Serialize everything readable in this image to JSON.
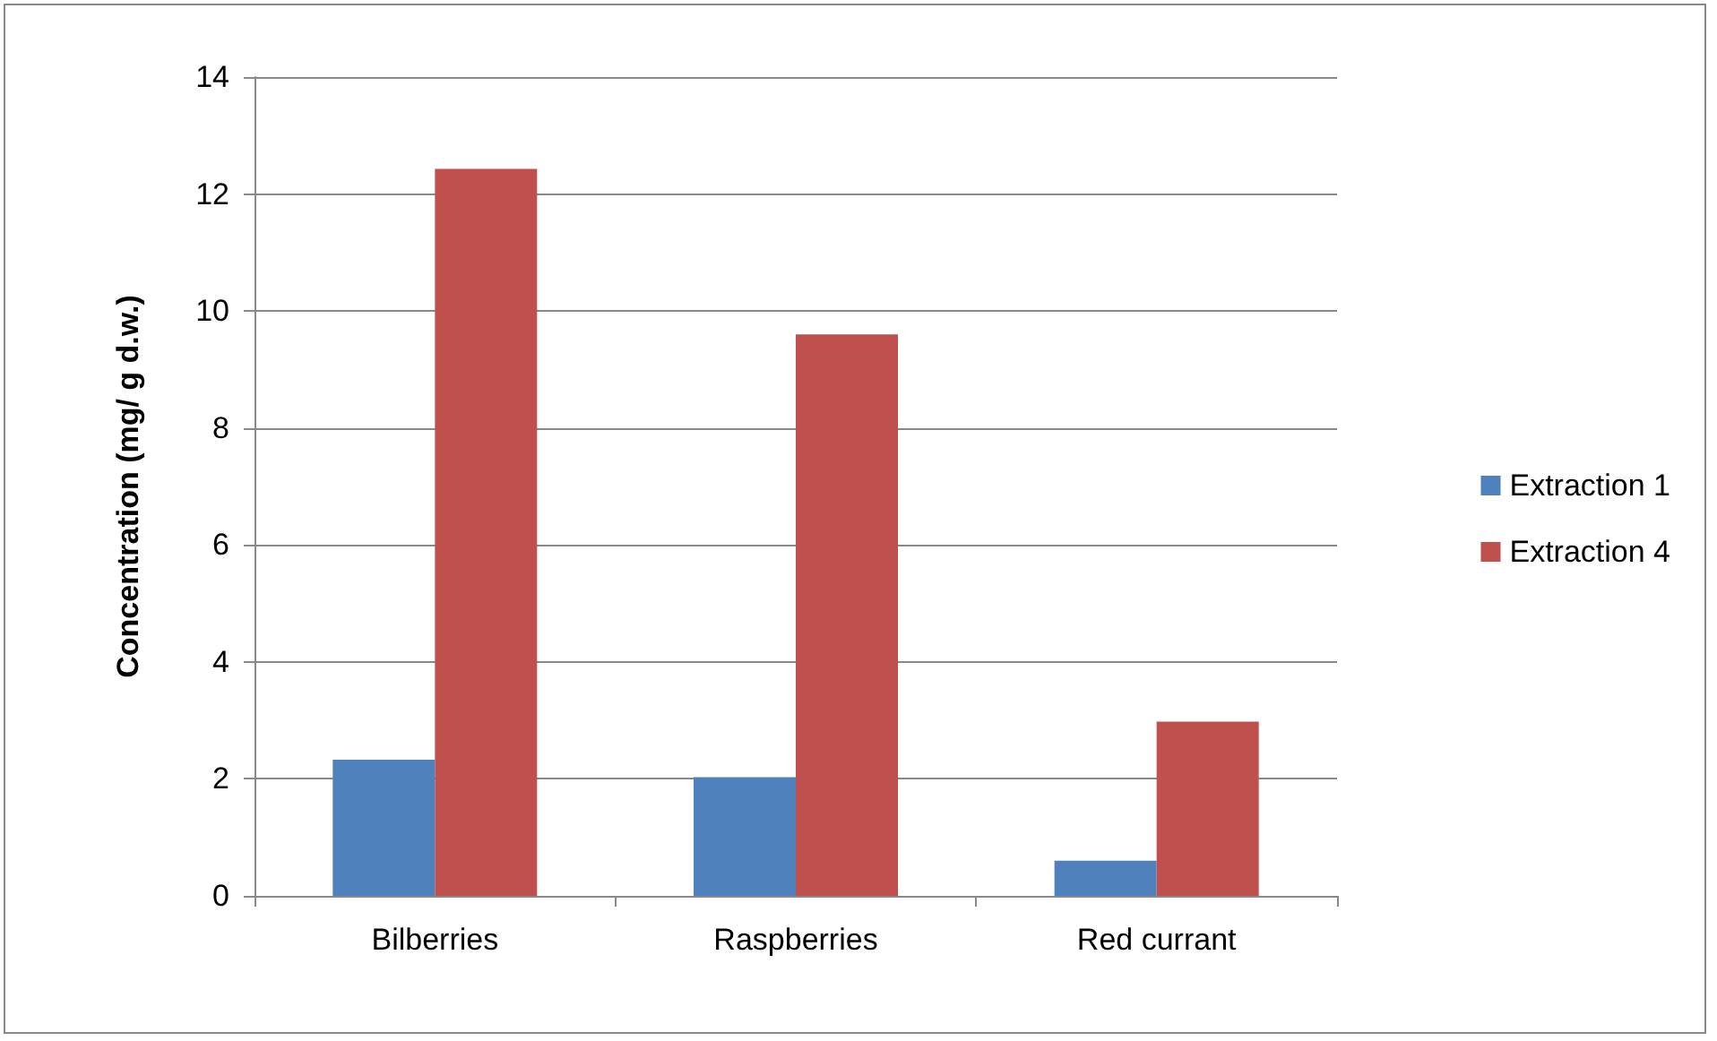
{
  "chart_data": {
    "type": "bar",
    "ylabel": "Concentration (mg/ g d.w.)",
    "categories": [
      "Bilberries",
      "Raspberries",
      "Red currant"
    ],
    "series": [
      {
        "name": "Extraction 1",
        "color": "#4f81bd",
        "values": [
          2.33,
          2.03,
          0.6
        ]
      },
      {
        "name": "Extraction 4",
        "color": "#c0504d",
        "values": [
          12.43,
          9.6,
          2.98
        ]
      }
    ],
    "ylim": [
      0,
      14
    ],
    "yticks": [
      0,
      2,
      4,
      6,
      8,
      10,
      12,
      14
    ],
    "grid": "y",
    "legend": "right"
  }
}
